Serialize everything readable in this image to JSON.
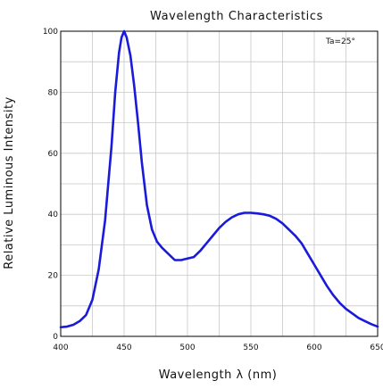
{
  "chart_data": {
    "type": "line",
    "title": "Wavelength Characteristics",
    "xlabel": "Wavelength λ (nm)",
    "ylabel": "Relative Luminous Intensity",
    "annotation": "Ta=25°",
    "xlim": [
      400,
      650
    ],
    "ylim": [
      0,
      100
    ],
    "x_ticks": [
      400,
      450,
      500,
      550,
      600,
      650
    ],
    "y_ticks": [
      0,
      20,
      40,
      60,
      80,
      100
    ],
    "x_tick_labels": [
      "400",
      "450",
      "500",
      "550",
      "600",
      "650"
    ],
    "y_tick_labels": [
      "0",
      "20",
      "40",
      "60",
      "80",
      "100"
    ],
    "grid": true,
    "line_color": "#1a1adb",
    "series": [
      {
        "x": [
          400,
          405,
          410,
          415,
          420,
          425,
          430,
          435,
          440,
          443,
          446,
          448,
          450,
          452,
          455,
          458,
          461,
          464,
          468,
          472,
          476,
          480,
          485,
          490,
          495,
          500,
          505,
          510,
          515,
          520,
          525,
          530,
          535,
          540,
          545,
          550,
          555,
          560,
          565,
          570,
          575,
          580,
          585,
          590,
          595,
          600,
          605,
          610,
          615,
          620,
          625,
          630,
          635,
          640,
          645,
          650
        ],
        "y": [
          3,
          3.2,
          3.8,
          5,
          7,
          12,
          22,
          38,
          62,
          80,
          93,
          98,
          100,
          98,
          92,
          82,
          70,
          57,
          43,
          35,
          31,
          29,
          27,
          25,
          25,
          25.5,
          26,
          28,
          30.5,
          33,
          35.5,
          37.5,
          39,
          40,
          40.5,
          40.5,
          40.3,
          40,
          39.5,
          38.5,
          37,
          35,
          33,
          30.5,
          27,
          23.5,
          20,
          16.5,
          13.5,
          11,
          9,
          7.5,
          6,
          5,
          4,
          3.2
        ]
      }
    ]
  }
}
